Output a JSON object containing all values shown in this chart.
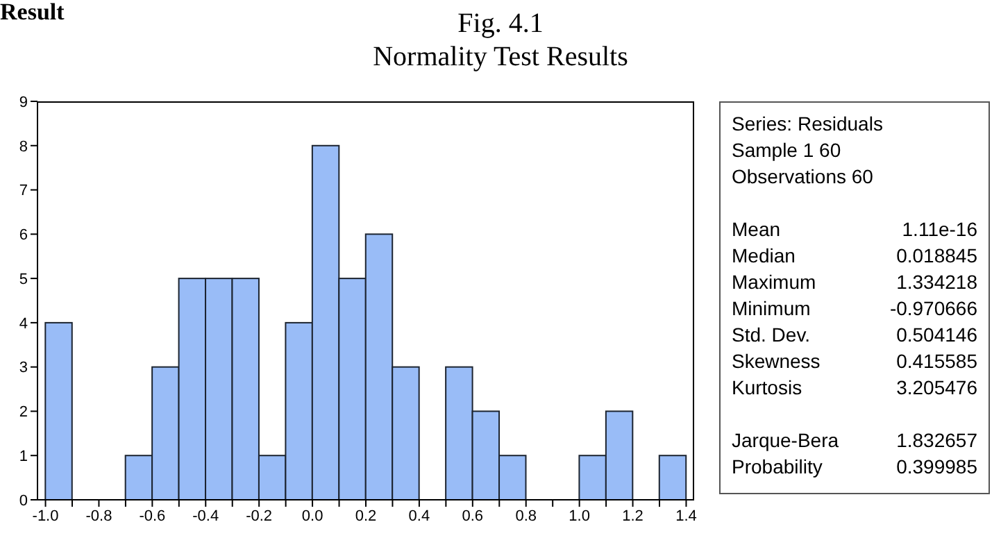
{
  "chart_data": [
    {
      "type": "histogram",
      "title": "Fig. 4.1",
      "subtitle": "Normality Test Results",
      "annotations": [
        "Result"
      ],
      "bins": [
        -1.0,
        -0.9,
        -0.8,
        -0.7,
        -0.6,
        -0.5,
        -0.4,
        -0.3,
        -0.2,
        -0.1,
        0.0,
        0.1,
        0.2,
        0.3,
        0.4,
        0.5,
        0.6,
        0.7,
        0.8,
        0.9,
        1.0,
        1.1,
        1.2,
        1.3,
        1.4
      ],
      "values": [
        4,
        0,
        0,
        1,
        3,
        5,
        5,
        5,
        1,
        4,
        8,
        5,
        6,
        3,
        0,
        3,
        2,
        1,
        0,
        0,
        1,
        2,
        0,
        1
      ],
      "color": "#99bcf7",
      "xlim": [
        -1.03,
        1.43
      ],
      "xticks": [
        {
          "value": -1.0,
          "label": "-1.0"
        },
        {
          "value": -0.9,
          "label": null
        },
        {
          "value": -0.8,
          "label": "-0.8"
        },
        {
          "value": -0.7,
          "label": null
        },
        {
          "value": -0.6,
          "label": "-0.6"
        },
        {
          "value": -0.5,
          "label": null
        },
        {
          "value": -0.4,
          "label": "-0.4"
        },
        {
          "value": -0.3,
          "label": null
        },
        {
          "value": -0.2,
          "label": "-0.2"
        },
        {
          "value": -0.1,
          "label": null
        },
        {
          "value": 0.0,
          "label": "0.0"
        },
        {
          "value": 0.1,
          "label": null
        },
        {
          "value": 0.2,
          "label": "0.2"
        },
        {
          "value": 0.3,
          "label": null
        },
        {
          "value": 0.4,
          "label": "0.4"
        },
        {
          "value": 0.5,
          "label": null
        },
        {
          "value": 0.6,
          "label": "0.6"
        },
        {
          "value": 0.7,
          "label": null
        },
        {
          "value": 0.8,
          "label": "0.8"
        },
        {
          "value": 0.9,
          "label": null
        },
        {
          "value": 1.0,
          "label": "1.0"
        },
        {
          "value": 1.1,
          "label": null
        },
        {
          "value": 1.2,
          "label": "1.2"
        },
        {
          "value": 1.3,
          "label": null
        },
        {
          "value": 1.4,
          "label": "1.4"
        }
      ],
      "ylim": [
        0,
        9
      ],
      "yticks": [
        0,
        1,
        2,
        3,
        4,
        5,
        6,
        7,
        8,
        9
      ]
    },
    {
      "type": "other",
      "annotations": [
        "Series: Residuals",
        "Sample 1 60",
        "Observations 60"
      ],
      "categories": [
        "Mean",
        "Median",
        "Maximum",
        "Minimum",
        "Std. Dev.",
        "Skewness",
        "Kurtosis",
        "Jarque-Bera",
        "Probability"
      ],
      "value_labels": [
        "1.11e-16",
        "0.018845",
        "1.334218",
        "-0.970666",
        "0.504146",
        "0.415585",
        "3.205476",
        "1.832657",
        "0.399985"
      ]
    }
  ]
}
